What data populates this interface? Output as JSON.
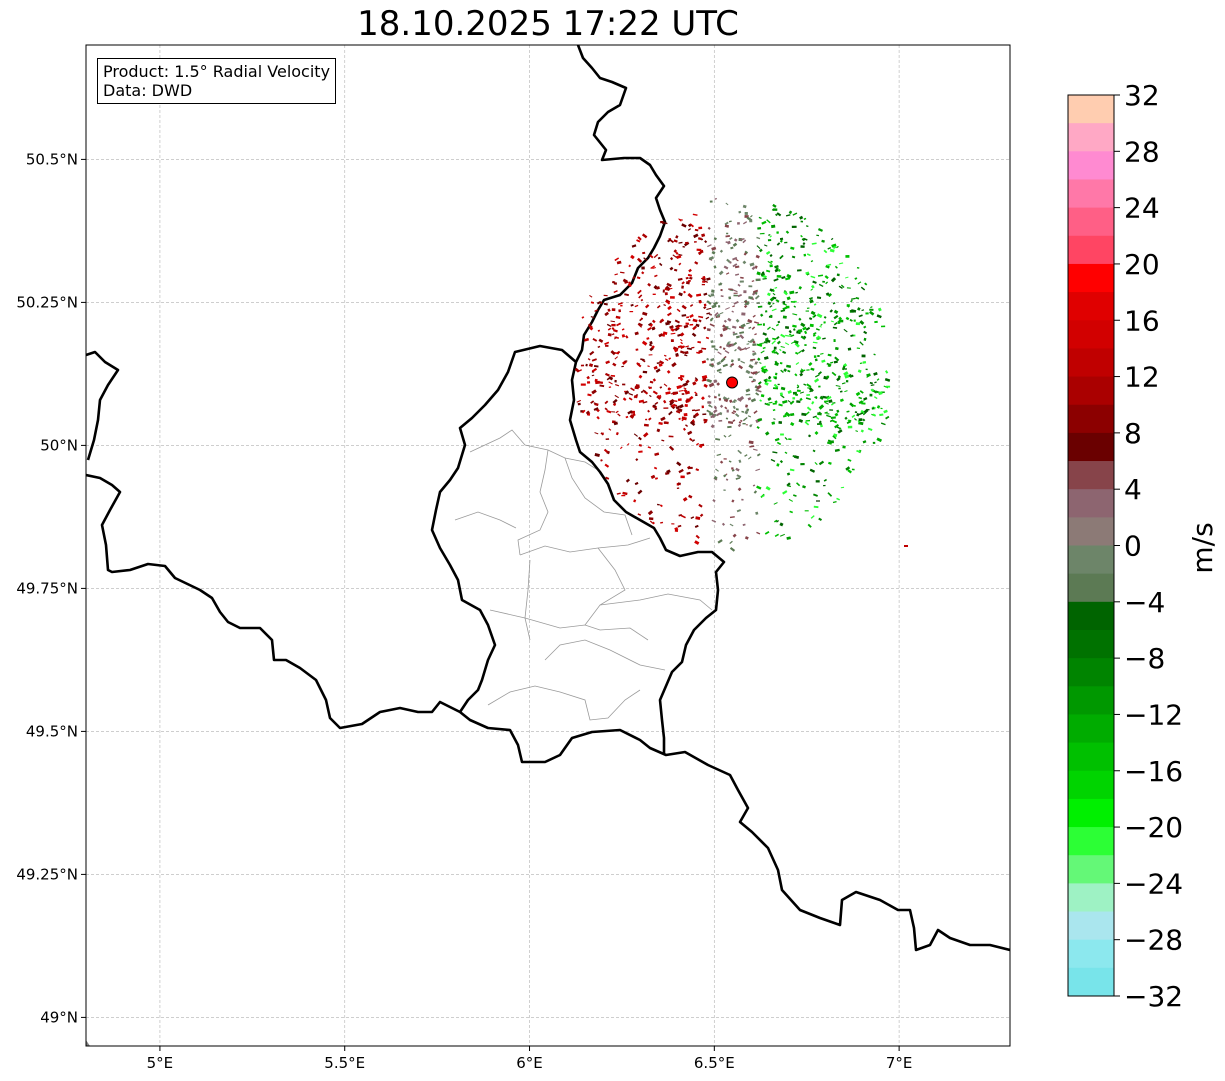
{
  "title": "18.10.2025 17:22 UTC",
  "info_box": {
    "product": "Product: 1.5° Radial Velocity",
    "data_source": "Data: DWD"
  },
  "map": {
    "lon_range": [
      4.8,
      7.3
    ],
    "lat_range": [
      48.95,
      50.7
    ],
    "lon_ticks": [
      {
        "value": 5.0,
        "label": "5°E"
      },
      {
        "value": 5.5,
        "label": "5.5°E"
      },
      {
        "value": 6.0,
        "label": "6°E"
      },
      {
        "value": 6.5,
        "label": "6.5°E"
      },
      {
        "value": 7.0,
        "label": "7°E"
      }
    ],
    "lat_ticks": [
      {
        "value": 50.5,
        "label": "50.5°N"
      },
      {
        "value": 50.25,
        "label": "50.25°N"
      },
      {
        "value": 50.0,
        "label": "50°N"
      },
      {
        "value": 49.75,
        "label": "49.75°N"
      },
      {
        "value": 49.5,
        "label": "49.5°N"
      },
      {
        "value": 49.25,
        "label": "49.25°N"
      },
      {
        "value": 49.0,
        "label": "49°N"
      }
    ],
    "radar_site": {
      "lon": 6.548,
      "lat": 50.11,
      "color": "#ff0000"
    },
    "grid": true
  },
  "colorbar": {
    "unit": "m/s",
    "min": -32,
    "max": 32,
    "ticks": [
      {
        "value": 32,
        "label": "32"
      },
      {
        "value": 28,
        "label": "28"
      },
      {
        "value": 24,
        "label": "24"
      },
      {
        "value": 20,
        "label": "20"
      },
      {
        "value": 16,
        "label": "16"
      },
      {
        "value": 12,
        "label": "12"
      },
      {
        "value": 8,
        "label": "8"
      },
      {
        "value": 4,
        "label": "4"
      },
      {
        "value": 0,
        "label": "0"
      },
      {
        "value": -4,
        "label": "−4"
      },
      {
        "value": -8,
        "label": "−8"
      },
      {
        "value": -12,
        "label": "−12"
      },
      {
        "value": -16,
        "label": "−16"
      },
      {
        "value": -20,
        "label": "−20"
      },
      {
        "value": -24,
        "label": "−24"
      },
      {
        "value": -28,
        "label": "−28"
      },
      {
        "value": -32,
        "label": "−32"
      }
    ],
    "colors_top_to_bottom": [
      "#ffcdb0",
      "#ffa8c5",
      "#ff8ad1",
      "#ff78a8",
      "#ff5f86",
      "#ff4563",
      "#ff0000",
      "#e00000",
      "#d20000",
      "#c00000",
      "#aa0000",
      "#8c0000",
      "#6a0000",
      "#87444a",
      "#8d6570",
      "#8c7a76",
      "#6d8569",
      "#5c7a54",
      "#006400",
      "#007200",
      "#008400",
      "#009800",
      "#00ac00",
      "#00c000",
      "#00d400",
      "#00f000",
      "#2cff35",
      "#64f877",
      "#9ef2c4",
      "#aae6ee",
      "#8ce8ee",
      "#78e4ea"
    ]
  }
}
